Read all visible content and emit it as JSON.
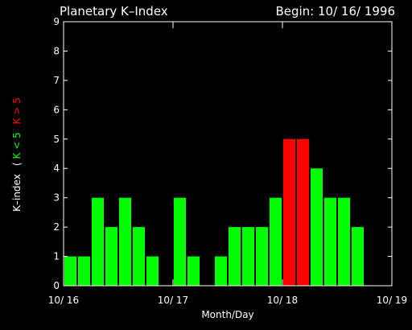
{
  "chart_data": {
    "type": "bar",
    "title": "Planetary K–Index",
    "begin_label": "Begin: 10/ 16/ 1996",
    "xlabel": "Month/Day",
    "ylabel": {
      "prefix": "K–index",
      "open": "(",
      "low": "K < 5",
      "high": "K > 5"
    },
    "ylim": [
      0,
      9
    ],
    "yticks": [
      "0",
      "1",
      "2",
      "3",
      "4",
      "5",
      "6",
      "7",
      "8",
      "9"
    ],
    "xticks": [
      "10/ 16",
      "10/ 17",
      "10/ 18",
      "10/ 19"
    ],
    "slots_per_day": 8,
    "values": [
      1,
      1,
      3,
      2,
      3,
      2,
      1,
      0,
      3,
      1,
      0,
      1,
      2,
      2,
      2,
      3,
      5,
      5,
      4,
      3,
      3,
      2,
      0,
      0
    ],
    "threshold": 5,
    "colors": {
      "background": "#000000",
      "axes": "#ffffff",
      "low": "#00ff00",
      "high": "#ff0000"
    }
  }
}
